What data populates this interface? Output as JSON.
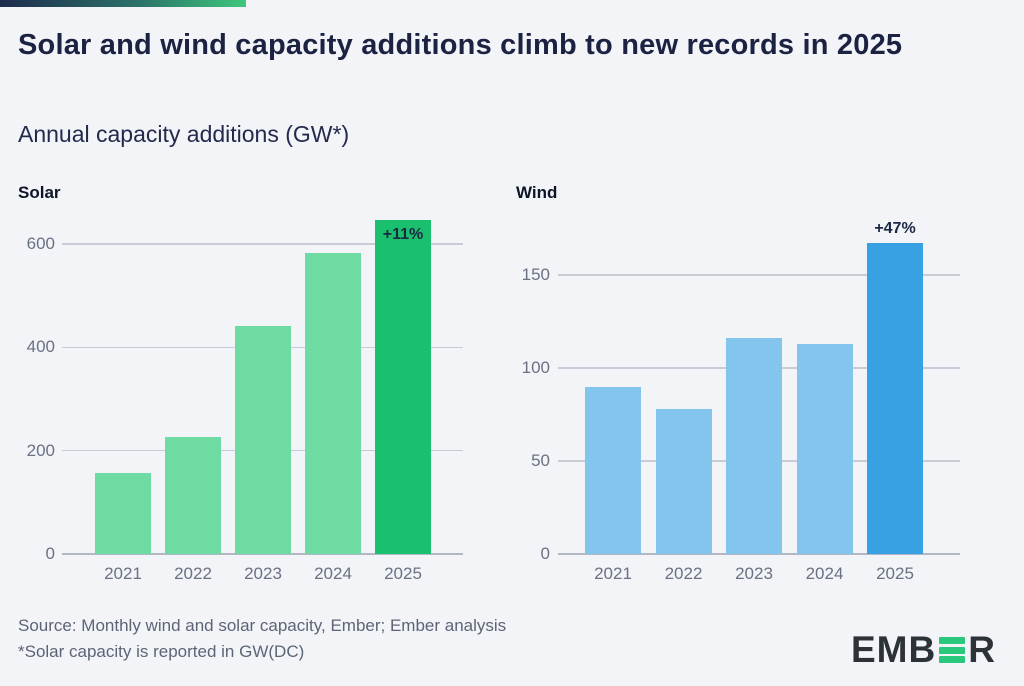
{
  "header": {
    "title": "Solar and wind capacity additions climb to new records in 2025",
    "subtitle": "Annual capacity additions (GW*)"
  },
  "chart_data": [
    {
      "type": "bar",
      "title": "Solar",
      "categories": [
        "2021",
        "2022",
        "2023",
        "2024",
        "2025"
      ],
      "values": [
        156,
        226,
        442,
        583,
        647
      ],
      "y_ticks": [
        0,
        200,
        400,
        600
      ],
      "ylim": [
        0,
        670
      ],
      "xlabel": "",
      "ylabel": "",
      "grid": "horizontal",
      "legend": "none",
      "bar_color": "#6edba3",
      "highlight_index": 4,
      "highlight_color": "#1ac06e",
      "annotation": {
        "label": "+11%",
        "position": "inside-top"
      }
    },
    {
      "type": "bar",
      "title": "Wind",
      "categories": [
        "2021",
        "2022",
        "2023",
        "2024",
        "2025"
      ],
      "values": [
        90,
        78,
        116,
        113,
        167
      ],
      "y_ticks": [
        0,
        50,
        100,
        150
      ],
      "ylim": [
        0,
        186
      ],
      "xlabel": "",
      "ylabel": "",
      "grid": "horizontal",
      "legend": "none",
      "bar_color": "#84c5ee",
      "highlight_index": 4,
      "highlight_color": "#38a1e4",
      "annotation": {
        "label": "+47%",
        "position": "above"
      }
    }
  ],
  "footer": {
    "source_line1": "Source: Monthly wind and solar capacity, Ember; Ember analysis",
    "source_line2": "*Solar capacity is reported in GW(DC)",
    "logo": {
      "brand": "EMBER",
      "text_left": "EMB",
      "text_right": "R",
      "green": "#2ac87c",
      "dark": "#2d3237"
    }
  },
  "theme": {
    "background": "#f2f4f8",
    "title_color": "#1c2342",
    "axis_label_color": "#6a7183",
    "gridline_color": "#c7cbd6",
    "baseline_color": "#b2b7c4",
    "accent_gradient_start": "#1d2b4c",
    "accent_gradient_end": "#3ec77d"
  }
}
